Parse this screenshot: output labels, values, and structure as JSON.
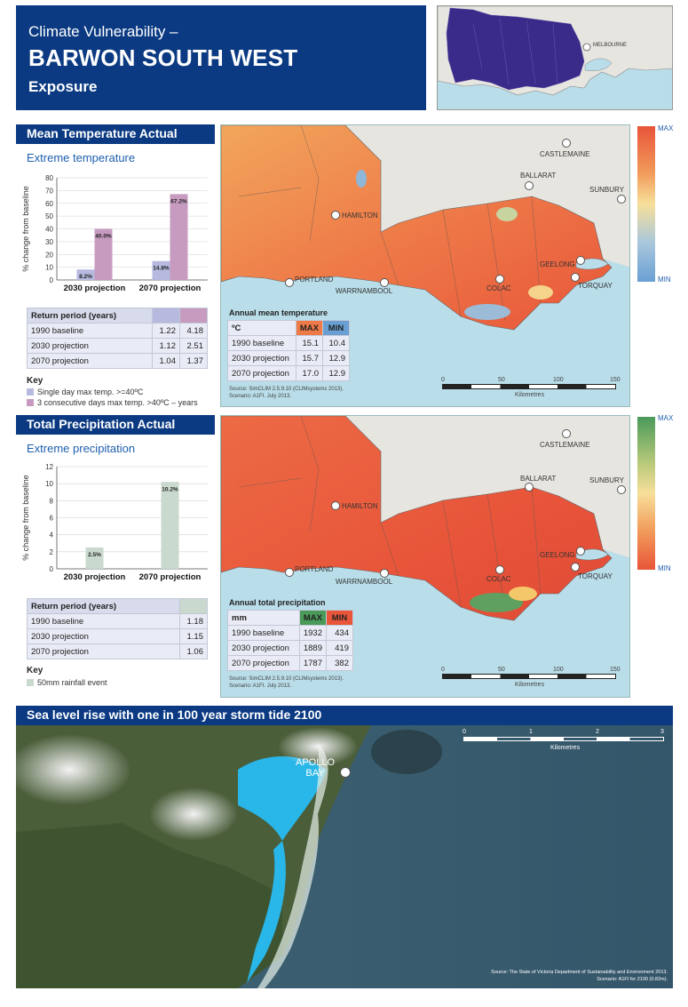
{
  "header": {
    "line1": "Climate Vulnerability –",
    "line2": "BARWON SOUTH WEST",
    "line3": "Exposure"
  },
  "locator": {
    "city_label": "MELBOURNE"
  },
  "temperature": {
    "section_title": "Mean Temperature Actual",
    "subtitle": "Extreme temperature",
    "chart_data": {
      "type": "bar",
      "categories": [
        "2030 projection",
        "2070 projection"
      ],
      "series": [
        {
          "name": "Single day max temp. >=40ºC",
          "values": [
            8.2,
            14.8
          ],
          "color": "#b7b9df"
        },
        {
          "name": "3 consecutive days max temp. >40ºC – years",
          "values": [
            40.0,
            67.2
          ],
          "color": "#c79bc0"
        }
      ],
      "data_labels": [
        [
          "8.2%",
          "40.0%"
        ],
        [
          "14.8%",
          "67.2%"
        ]
      ],
      "ylabel": "% change from baseline",
      "yticks": [
        0,
        10,
        20,
        30,
        40,
        50,
        60,
        70,
        80
      ],
      "ylim": [
        0,
        80
      ]
    },
    "return_table": {
      "header": "Return period (years)",
      "rows": [
        {
          "label": "1990 baseline",
          "v1": "1.22",
          "v2": "4.18"
        },
        {
          "label": "2030 projection",
          "v1": "1.12",
          "v2": "2.51"
        },
        {
          "label": "2070 projection",
          "v1": "1.04",
          "v2": "1.37"
        }
      ]
    },
    "key_title": "Key",
    "key": [
      {
        "label": "Single day max temp. >=40ºC",
        "color": "#b7b9df"
      },
      {
        "label": "3 consecutive days max temp. >40ºC – years",
        "color": "#c79bc0"
      }
    ],
    "map": {
      "table_title": "Annual mean temperature",
      "unit": "ºC",
      "max_label": "MAX",
      "min_label": "MIN",
      "rows": [
        {
          "label": "1990 baseline",
          "max": "15.1",
          "min": "10.4"
        },
        {
          "label": "2030 projection",
          "max": "15.7",
          "min": "12.9"
        },
        {
          "label": "2070 projection",
          "max": "17.0",
          "min": "12.9"
        }
      ],
      "source_line1": "Source: SimCLIM 2.5.9.10 (CLIMsystems 2013).",
      "source_line2": "Scenario: A1FI. July 2013.",
      "legend_max": "MAX",
      "legend_min": "MIN",
      "scale_ticks": [
        "0",
        "50",
        "100",
        "150"
      ],
      "scale_unit": "Kilometres"
    }
  },
  "precipitation": {
    "section_title": "Total Precipitation Actual",
    "subtitle": "Extreme precipitation",
    "chart_data": {
      "type": "bar",
      "categories": [
        "2030 projection",
        "2070 projection"
      ],
      "series": [
        {
          "name": "50mm rainfall event",
          "values": [
            2.5,
            10.2
          ],
          "color": "#c9d9cd"
        }
      ],
      "data_labels": [
        [
          "2.5%"
        ],
        [
          "10.2%"
        ]
      ],
      "ylabel": "% change from baseline",
      "yticks": [
        0,
        2,
        4,
        6,
        8,
        10,
        12
      ],
      "ylim": [
        0,
        12
      ]
    },
    "return_table": {
      "header": "Return period (years)",
      "rows": [
        {
          "label": "1990 baseline",
          "v1": "1.18"
        },
        {
          "label": "2030 projection",
          "v1": "1.15"
        },
        {
          "label": "2070 projection",
          "v1": "1.06"
        }
      ]
    },
    "key_title": "Key",
    "key": [
      {
        "label": "50mm rainfall event",
        "color": "#c9d9cd"
      }
    ],
    "map": {
      "table_title": "Annual total precipitation",
      "unit": "mm",
      "max_label": "MAX",
      "min_label": "MIN",
      "rows": [
        {
          "label": "1990 baseline",
          "max": "1932",
          "min": "434"
        },
        {
          "label": "2030 projection",
          "max": "1889",
          "min": "419"
        },
        {
          "label": "2070 projection",
          "max": "1787",
          "min": "382"
        }
      ],
      "source_line1": "Source: SimCLIM 2.5.9.10 (CLIMsystems 2013).",
      "source_line2": "Scenario: A1FI. July 2013.",
      "legend_max": "MAX",
      "legend_min": "MIN",
      "scale_ticks": [
        "0",
        "50",
        "100",
        "150"
      ],
      "scale_unit": "Kilometres"
    }
  },
  "cities": {
    "castlemaine": "CASTLEMAINE",
    "ballarat": "BALLARAT",
    "sunbury": "SUNBURY",
    "hamilton": "HAMILTON",
    "portland": "PORTLAND",
    "warrnambool": "WARRNAMBOOL",
    "colac": "COLAC",
    "geelong": "GEELONG",
    "torquay": "TORQUAY"
  },
  "sea_level": {
    "section_title": "Sea level rise with one in 100 year storm tide 2100",
    "town_label_1": "APOLLO",
    "town_label_2": "BAY",
    "scale_ticks": [
      "0",
      "1",
      "2",
      "3"
    ],
    "scale_unit": "Kilometres",
    "source_line1": "Source: The State of Victoria Department of Sustainability and Environment 2013.",
    "source_line2": "Scenario: A1FI for 2100 (0.82m)."
  },
  "colors": {
    "navy": "#0b3a82",
    "panel_blue": "#b9dde9",
    "temp_max": "#e8553a",
    "temp_min": "#6a9fd4",
    "precip_max": "#4a9a5a",
    "precip_min": "#e8553a",
    "inundation": "#29b6e8"
  }
}
